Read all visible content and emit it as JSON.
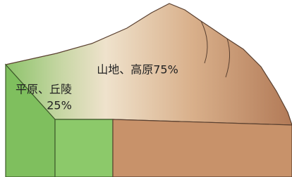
{
  "labels": {
    "mountain": "山地、高原75%",
    "plain": "平原、丘陵",
    "plain_share": "25%"
  }
}
